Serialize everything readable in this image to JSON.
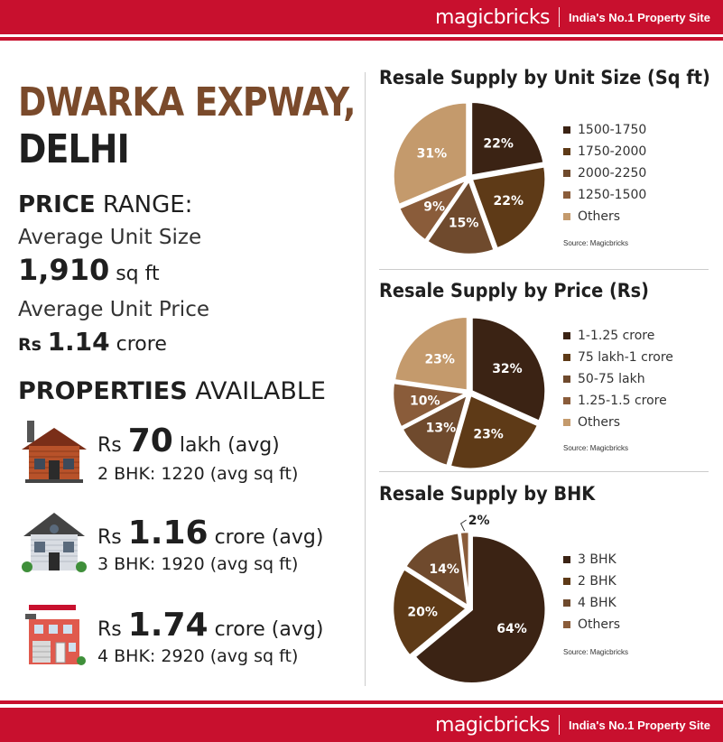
{
  "brand": {
    "logo": "magicbricks",
    "tagline": "India's No.1 Property Site"
  },
  "location": {
    "line1": "DWARKA EXPWAY,",
    "line2": "DELHI"
  },
  "price_range": {
    "heading_bold": "PRICE",
    "heading_rest": " RANGE:",
    "avg_size_label": "Average Unit Size",
    "avg_size_value": "1,910",
    "avg_size_unit": " sq ft",
    "avg_price_label": "Average Unit Price",
    "avg_price_prefix": "Rs ",
    "avg_price_value": "1.14",
    "avg_price_unit": " crore"
  },
  "properties": {
    "heading_bold": "PROPERTIES",
    "heading_rest": " AVAILABLE",
    "items": [
      {
        "prefix": "Rs ",
        "value": "70",
        "suffix": " lakh (avg)",
        "detail": "2 BHK: 1220 (avg sq ft)"
      },
      {
        "prefix": "Rs ",
        "value": "1.16",
        "suffix": " crore (avg)",
        "detail": "3 BHK: 1920 (avg sq ft)"
      },
      {
        "prefix": "Rs ",
        "value": "1.74",
        "suffix": " crore (avg)",
        "detail": "4 BHK: 2920 (avg sq ft)"
      }
    ]
  },
  "chart_data": [
    {
      "type": "pie",
      "title": "Resale Supply by Unit Size (Sq ft)",
      "source": "Source: Magicbricks",
      "categories": [
        "1500-1750",
        "1750-2000",
        "2000-2250",
        "1250-1500",
        "Others"
      ],
      "values": [
        22,
        22,
        15,
        9,
        31
      ],
      "labels": [
        "22%",
        "22%",
        "15%",
        "9%",
        "31%"
      ],
      "colors": [
        "#3b2314",
        "#5e3a17",
        "#6f4a2d",
        "#8a5c3a",
        "#c49a6c"
      ]
    },
    {
      "type": "pie",
      "title": "Resale Supply by Price (Rs)",
      "source": "Source: Magicbricks",
      "categories": [
        "1-1.25 crore",
        "75 lakh-1 crore",
        "50-75 lakh",
        "1.25-1.5 crore",
        "Others"
      ],
      "values": [
        32,
        23,
        13,
        10,
        23
      ],
      "labels": [
        "32%",
        "23%",
        "13%",
        "10%",
        "23%"
      ],
      "colors": [
        "#3b2314",
        "#5e3a17",
        "#6f4a2d",
        "#8a5c3a",
        "#c49a6c"
      ]
    },
    {
      "type": "pie",
      "title": "Resale Supply by BHK",
      "source": "Source: Magicbricks",
      "categories": [
        "3 BHK",
        "2 BHK",
        "4 BHK",
        "Others"
      ],
      "values": [
        64,
        20,
        14,
        2
      ],
      "labels": [
        "64%",
        "20%",
        "14%",
        "2%"
      ],
      "colors": [
        "#3b2314",
        "#5e3a17",
        "#6f4a2d",
        "#8a5c3a"
      ]
    }
  ]
}
